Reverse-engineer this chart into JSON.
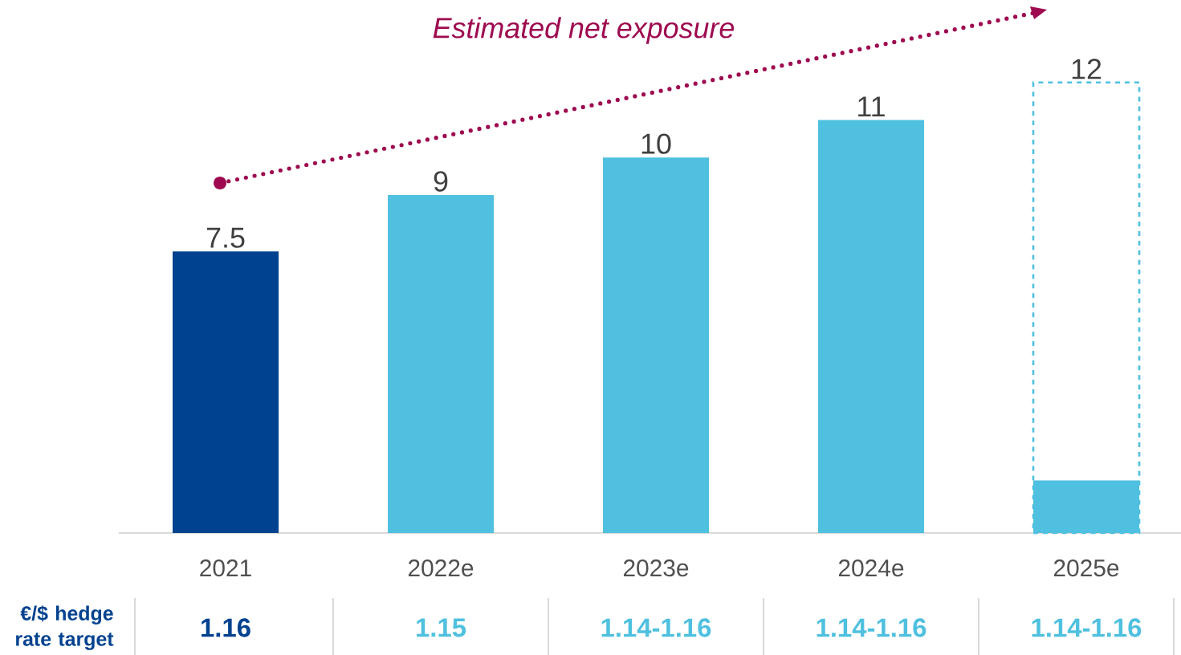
{
  "chart_data": {
    "type": "bar",
    "categories": [
      "2021",
      "2022e",
      "2023e",
      "2024e",
      "2025e"
    ],
    "series": [
      {
        "colors": [
          "#00428f",
          "#4fc0df",
          "#4fc0df",
          "#4fc0df",
          "#4fc0df"
        ],
        "values": [
          7.5,
          9,
          10,
          11,
          null
        ],
        "value_labels": [
          "7.5",
          "9",
          "10",
          "11",
          null
        ]
      },
      {
        "color": "#4fc0df",
        "line_style": "dashed",
        "values": [
          null,
          null,
          null,
          null,
          12
        ],
        "value_labels": [
          null,
          null,
          null,
          null,
          "12"
        ]
      },
      {
        "color": "#4fc0df",
        "values": [
          null,
          null,
          null,
          null,
          1.4
        ]
      }
    ],
    "annotations": [
      "Estimated net exposure",
      "€/$ hedge rate target",
      "1.16",
      "1.15",
      "1.14-1.16",
      "1.14-1.16",
      "1.14-1.16"
    ]
  }
}
